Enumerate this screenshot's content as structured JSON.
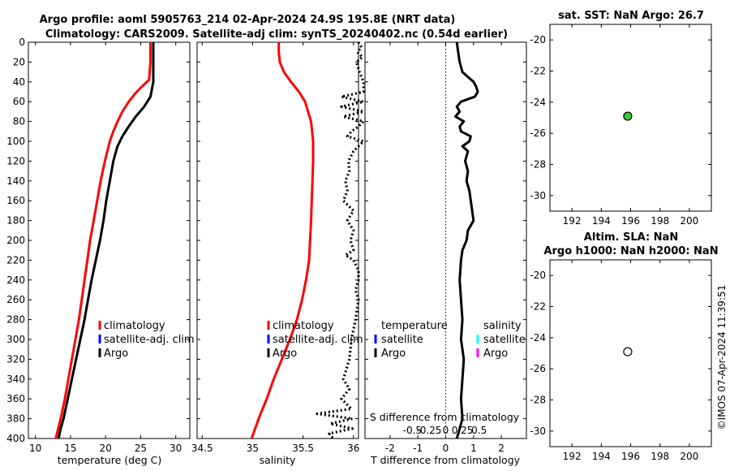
{
  "header": {
    "title_line1": "Argo profile: aoml 5905763_214 02-Apr-2024 24.9S 195.8E (NRT data)",
    "title_line2": "Climatology: CARS2009. Satellite-adj clim: synTS_20240402.nc (0.54d earlier)"
  },
  "timestamp": "©IMOS 07-Apr-2024 11:39:51",
  "colors": {
    "climatology": "#ff0000",
    "satellite_adj_clim": "#0000ff",
    "argo": "#000000",
    "satellite_temp": "#0000ff",
    "satellite_sal": "#00ffff",
    "argo_sal": "#ff00ff",
    "sst_marker": "#33cc33"
  },
  "chart_data": [
    {
      "id": "temperature",
      "type": "line",
      "xlabel": "temperature (deg C)",
      "xlim": [
        9,
        32
      ],
      "ylim": [
        0,
        400
      ],
      "xticks": [
        10,
        15,
        20,
        25,
        30
      ],
      "yticks": [
        0,
        20,
        40,
        60,
        80,
        100,
        120,
        140,
        160,
        180,
        200,
        220,
        240,
        260,
        280,
        300,
        320,
        340,
        360,
        380,
        400
      ],
      "legend": [
        "climatology",
        "satellite-adj. clim",
        "Argo"
      ],
      "series": [
        {
          "name": "climatology",
          "color": "#ff0000",
          "depth": [
            0,
            20,
            38,
            46,
            52,
            60,
            70,
            80,
            90,
            100,
            120,
            140,
            160,
            180,
            200,
            220,
            240,
            260,
            280,
            300,
            320,
            340,
            360,
            380,
            400
          ],
          "values": [
            26.4,
            26.4,
            26.2,
            25.0,
            24.2,
            23.3,
            22.4,
            21.7,
            21.1,
            20.6,
            19.9,
            19.3,
            18.8,
            18.3,
            17.8,
            17.4,
            17.0,
            16.6,
            16.2,
            15.7,
            15.2,
            14.7,
            14.2,
            13.6,
            12.9
          ]
        },
        {
          "name": "Argo",
          "color": "#000000",
          "depth": [
            0,
            20,
            40,
            55,
            65,
            75,
            85,
            95,
            105,
            120,
            140,
            160,
            180,
            200,
            220,
            240,
            260,
            280,
            300,
            320,
            340,
            360,
            380,
            390,
            400
          ],
          "values": [
            26.8,
            26.8,
            26.8,
            26.4,
            25.5,
            24.3,
            23.3,
            22.4,
            21.7,
            21.1,
            20.6,
            20.1,
            19.7,
            19.2,
            18.6,
            18.0,
            17.5,
            17.0,
            16.4,
            15.8,
            15.2,
            14.6,
            14.0,
            13.6,
            13.3
          ]
        }
      ]
    },
    {
      "id": "salinity",
      "type": "line",
      "xlabel": "salinity",
      "xlim": [
        34.45,
        36.05
      ],
      "ylim": [
        0,
        400
      ],
      "xticks": [
        "34.5",
        "35",
        "35.5",
        "36"
      ],
      "legend": [
        "climatology",
        "satellite-adj. clim",
        "Argo"
      ],
      "series": [
        {
          "name": "climatology",
          "color": "#ff0000",
          "depth": [
            0,
            10,
            20,
            30,
            40,
            50,
            60,
            80,
            100,
            120,
            150,
            180,
            200,
            220,
            240,
            260,
            280,
            300,
            320,
            340,
            360,
            380,
            400
          ],
          "values": [
            35.26,
            35.26,
            35.27,
            35.31,
            35.38,
            35.46,
            35.52,
            35.58,
            35.6,
            35.6,
            35.59,
            35.58,
            35.57,
            35.56,
            35.53,
            35.49,
            35.44,
            35.37,
            35.29,
            35.21,
            35.14,
            35.06,
            34.99
          ]
        },
        {
          "name": "Argo",
          "color": "#000000",
          "depth": [
            0,
            5,
            10,
            15,
            20,
            30,
            40,
            50,
            55,
            60,
            65,
            70,
            75,
            80,
            85,
            90,
            95,
            100,
            110,
            120,
            130,
            140,
            150,
            160,
            170,
            180,
            190,
            200,
            210,
            215,
            220,
            230,
            240,
            250,
            260,
            280,
            300,
            320,
            340,
            350,
            360,
            370,
            375,
            380,
            385,
            390,
            395,
            400
          ],
          "values": [
            36.05,
            36.08,
            36.04,
            36.09,
            36.03,
            36.06,
            36.1,
            36.1,
            35.88,
            36.1,
            35.88,
            36.1,
            35.9,
            36.1,
            36.05,
            35.98,
            35.94,
            36.1,
            36.0,
            35.95,
            35.96,
            35.92,
            35.94,
            35.9,
            36.0,
            35.94,
            36.0,
            35.97,
            36.0,
            35.92,
            36.0,
            36.05,
            36.05,
            36.02,
            36.05,
            36.02,
            35.98,
            35.96,
            35.9,
            35.96,
            35.88,
            35.98,
            35.64,
            35.99,
            35.77,
            35.99,
            35.76,
            35.8
          ]
        }
      ]
    },
    {
      "id": "difference",
      "type": "line",
      "xlabel": "T difference from climatology",
      "xlabel_top": "S difference from climatology",
      "xlim": [
        -2.9,
        2.9
      ],
      "ylim": [
        0,
        400
      ],
      "xticks": [
        "-2",
        "-1",
        "0",
        "1",
        "2"
      ],
      "xticks_top": [
        "-0.5",
        "-0.25",
        "0",
        "0.25",
        "0.5"
      ],
      "legend_left_title": "temperature",
      "legend_left": [
        "satellite",
        "Argo"
      ],
      "legend_right_title": "salinity",
      "legend_right": [
        "satellite",
        "Argo"
      ],
      "series": [
        {
          "name": "Argo T diff",
          "color": "#000000",
          "depth": [
            0,
            10,
            20,
            30,
            35,
            40,
            45,
            50,
            55,
            60,
            65,
            70,
            75,
            80,
            85,
            90,
            95,
            100,
            105,
            110,
            120,
            130,
            140,
            150,
            160,
            170,
            180,
            190,
            200,
            210,
            220,
            240,
            260,
            280,
            300,
            320,
            340,
            360,
            380,
            390,
            400
          ],
          "values": [
            0.4,
            0.45,
            0.5,
            0.6,
            0.8,
            1.0,
            1.1,
            1.15,
            1.05,
            0.55,
            0.4,
            0.5,
            0.35,
            0.65,
            0.5,
            0.55,
            0.9,
            0.85,
            0.6,
            0.8,
            0.7,
            0.8,
            0.75,
            0.85,
            0.9,
            0.95,
            1.0,
            0.8,
            0.75,
            0.6,
            0.55,
            0.5,
            0.55,
            0.6,
            0.55,
            0.65,
            0.6,
            0.55,
            0.6,
            0.5,
            0.4
          ]
        }
      ]
    },
    {
      "id": "sst_map",
      "type": "scatter",
      "title": "sat. SST: NaN Argo: 26.7",
      "xlim": [
        190.5,
        201.5
      ],
      "ylim": [
        -31,
        -19
      ],
      "xticks": [
        "192",
        "194",
        "196",
        "198",
        "200"
      ],
      "yticks": [
        "-20",
        "-22",
        "-24",
        "-26",
        "-28",
        "-30"
      ],
      "points": [
        {
          "x": 195.8,
          "y": -24.9,
          "fill": "#33cc33"
        }
      ]
    },
    {
      "id": "sla_map",
      "type": "scatter",
      "title_line1": "Altim. SLA: NaN",
      "title_line2": "Argo h1000: NaN h2000: NaN",
      "xlim": [
        190.5,
        201.5
      ],
      "ylim": [
        -31,
        -19
      ],
      "xticks": [
        "192",
        "194",
        "196",
        "198",
        "200"
      ],
      "yticks": [
        "-20",
        "-22",
        "-24",
        "-26",
        "-28",
        "-30"
      ],
      "points": [
        {
          "x": 195.8,
          "y": -24.9,
          "fill": "#ffffff"
        }
      ]
    }
  ]
}
